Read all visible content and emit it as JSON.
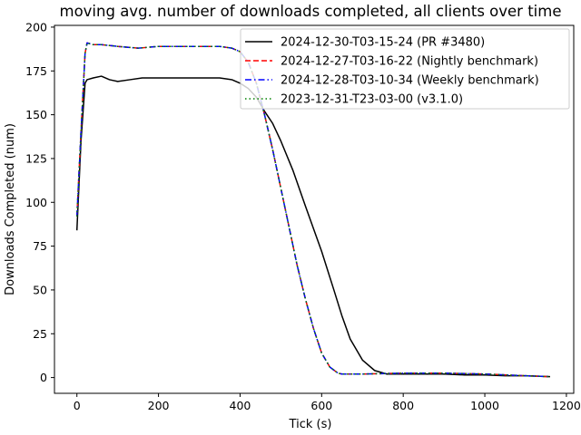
{
  "chart_data": {
    "type": "line",
    "title": "moving avg. number of downloads completed, all clients over time",
    "xlabel": "Tick (s)",
    "ylabel": "Downloads Completed (num)",
    "xlim": [
      -55,
      1218
    ],
    "ylim": [
      -9,
      201
    ],
    "xticks": [
      0,
      200,
      400,
      600,
      800,
      1000,
      1200
    ],
    "yticks": [
      0,
      25,
      50,
      75,
      100,
      125,
      150,
      175,
      200
    ],
    "grid": false,
    "legend_position": "upper right",
    "series": [
      {
        "name": "2024-12-30-T03-15-24 (PR #3480)",
        "color": "#000000",
        "dash": "solid",
        "x": [
          0,
          10,
          20,
          25,
          40,
          60,
          80,
          100,
          130,
          160,
          200,
          250,
          300,
          350,
          380,
          400,
          420,
          440,
          460,
          480,
          500,
          530,
          560,
          600,
          630,
          650,
          670,
          700,
          730,
          760,
          800,
          850,
          900,
          950,
          1000,
          1050,
          1100,
          1160
        ],
        "y": [
          84,
          135,
          168,
          170,
          171,
          172,
          170,
          169,
          170,
          171,
          171,
          171,
          171,
          171,
          170,
          168,
          165,
          160,
          152,
          145,
          135,
          118,
          98,
          72,
          50,
          35,
          22,
          10,
          4,
          2,
          2,
          2,
          2,
          1.5,
          1.5,
          1,
          1,
          0.5
        ]
      },
      {
        "name": "2024-12-27-T03-16-22 (Nightly benchmark)",
        "color": "#ff0000",
        "dash": "dashed",
        "x": [
          0,
          10,
          20,
          25,
          40,
          60,
          100,
          150,
          200,
          250,
          300,
          350,
          380,
          400,
          420,
          440,
          460,
          480,
          500,
          520,
          540,
          560,
          580,
          600,
          620,
          640,
          650,
          660,
          700,
          800,
          900,
          1000,
          1100,
          1160
        ],
        "y": [
          92,
          140,
          185,
          191,
          190,
          190,
          189,
          188,
          189,
          189,
          189,
          189,
          188,
          186,
          180,
          168,
          150,
          130,
          108,
          86,
          64,
          45,
          28,
          14,
          6,
          2.5,
          2,
          2,
          2,
          2.5,
          2.5,
          2,
          1,
          0.5
        ]
      },
      {
        "name": "2024-12-28-T03-10-34 (Weekly benchmark)",
        "color": "#0000ff",
        "dash": "dashdot",
        "x": [
          0,
          10,
          20,
          25,
          40,
          60,
          100,
          150,
          200,
          250,
          300,
          350,
          380,
          400,
          420,
          440,
          460,
          480,
          500,
          520,
          540,
          560,
          580,
          600,
          620,
          640,
          650,
          660,
          700,
          800,
          900,
          1000,
          1100,
          1160
        ],
        "y": [
          92,
          140,
          185,
          191,
          190,
          190,
          189,
          188,
          189,
          189,
          189,
          189,
          188,
          186,
          180,
          168,
          150,
          130,
          108,
          86,
          64,
          45,
          28,
          14,
          6,
          2.5,
          2,
          2,
          2,
          2.5,
          2.5,
          2,
          1,
          0.5
        ]
      },
      {
        "name": "2023-12-31-T23-03-00 (v3.1.0)",
        "color": "#008000",
        "dash": "dotted",
        "x": [
          0,
          10,
          20,
          25,
          40,
          60,
          100,
          150,
          200,
          250,
          300,
          350,
          380,
          400,
          420,
          440,
          460,
          480,
          500,
          520,
          540,
          560,
          580,
          600,
          620,
          640,
          650,
          660,
          700,
          800,
          900,
          1000,
          1100,
          1160
        ],
        "y": [
          92,
          140,
          185,
          191,
          190,
          190,
          189,
          188,
          189,
          189,
          189,
          189,
          188,
          186,
          180,
          168,
          150,
          130,
          108,
          86,
          64,
          45,
          28,
          14,
          6,
          2.5,
          2,
          2,
          2,
          2.5,
          2.5,
          2,
          1,
          0.5
        ]
      }
    ]
  }
}
